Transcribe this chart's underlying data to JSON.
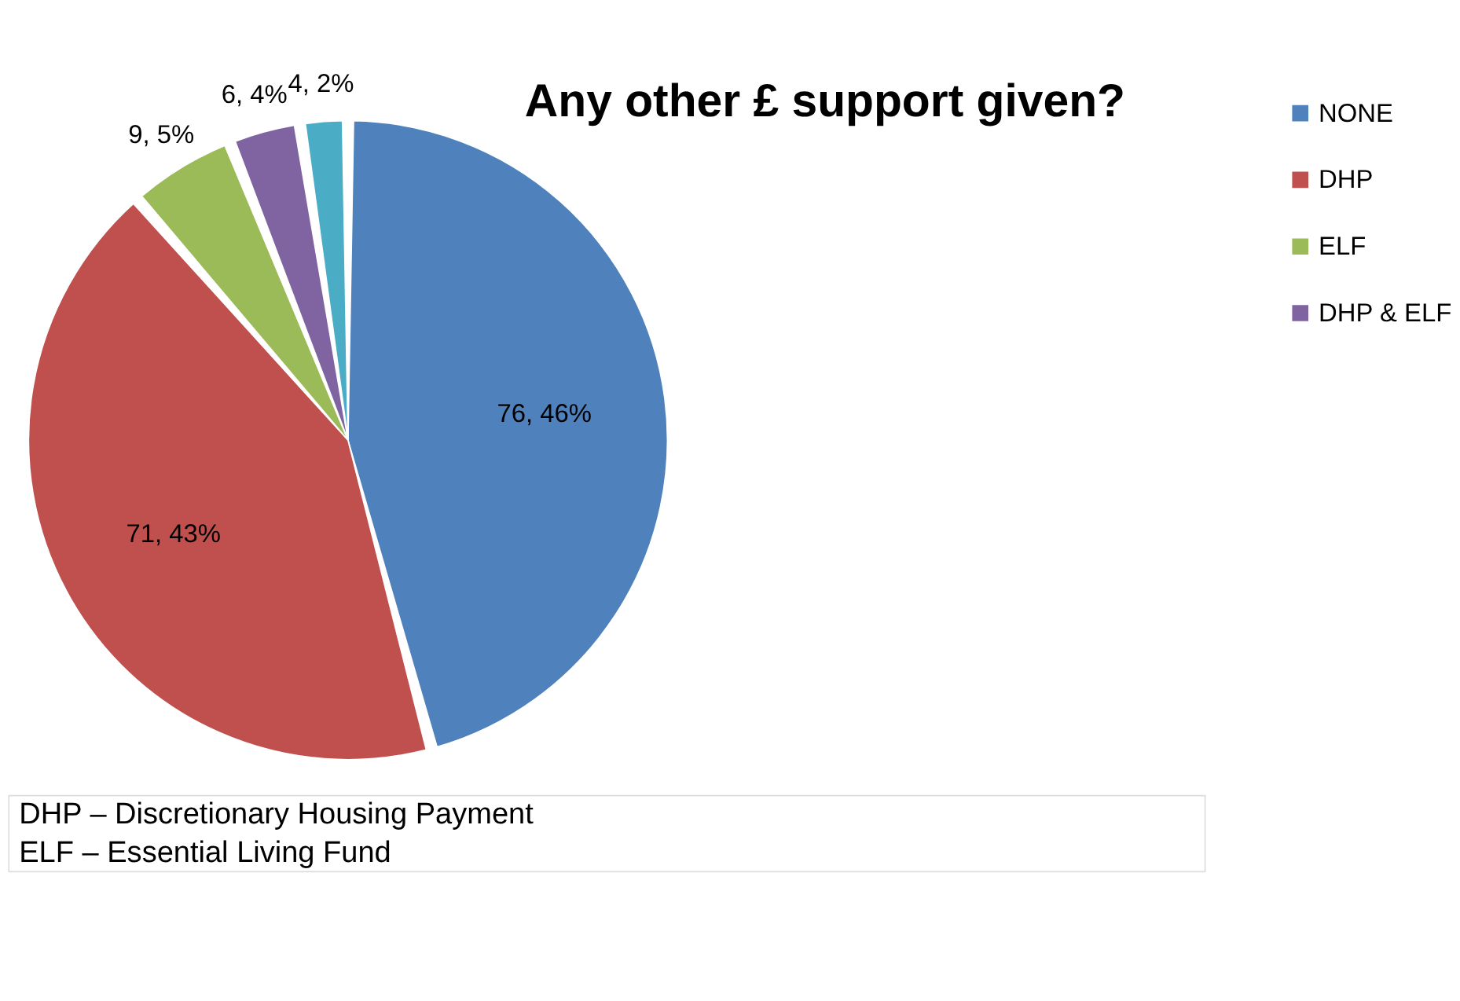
{
  "chart_data": {
    "type": "pie",
    "title": "Any other £ support given?",
    "categories": [
      "NONE",
      "DHP",
      "ELF",
      "DHP & ELF",
      null
    ],
    "values": [
      76,
      71,
      9,
      6,
      4
    ],
    "colors": [
      "#4f81bd",
      "#c0504d",
      "#9bbb59",
      "#8064a2",
      "#4bacc6"
    ],
    "value_labels": [
      "76, 46%",
      "71, 43%",
      "9, 5%",
      "6, 4%",
      "4, 2%"
    ],
    "legend": "right",
    "annotations": [
      "DHP – Discretionary Housing Payment",
      "ELF – Essential Living Fund"
    ]
  }
}
